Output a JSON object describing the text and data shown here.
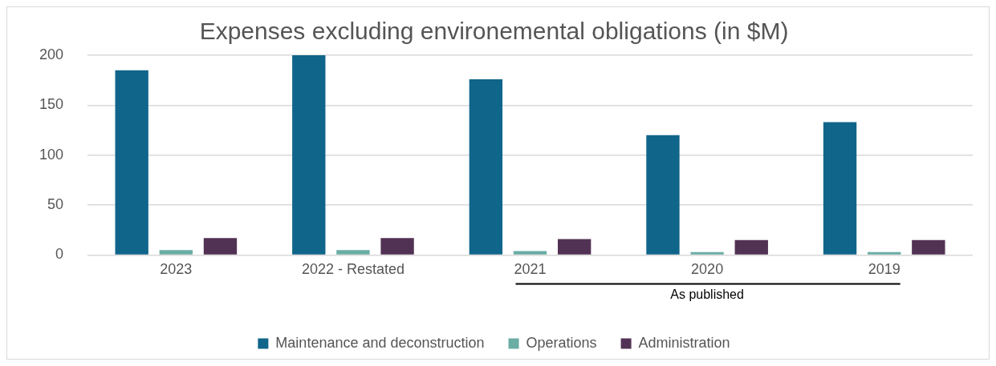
{
  "chart_data": {
    "type": "bar",
    "title": "Expenses excluding environemental obligations (in $M)",
    "categories": [
      "2023",
      "2022 - Restated",
      "2021",
      "2020",
      "2019"
    ],
    "series": [
      {
        "name": "Maintenance and deconstruction",
        "color": "#10658a",
        "values": [
          185,
          200,
          176,
          120,
          133
        ]
      },
      {
        "name": "Operations",
        "color": "#6aada5",
        "values": [
          5,
          5,
          4,
          3,
          3
        ]
      },
      {
        "name": "Administration",
        "color": "#523254",
        "values": [
          17,
          17,
          16,
          15,
          15
        ]
      }
    ],
    "ylim": [
      0,
      200
    ],
    "yticks": [
      0,
      50,
      100,
      150,
      200
    ],
    "grid": "y",
    "legend": "bottom",
    "annotations": [
      "As published"
    ]
  }
}
